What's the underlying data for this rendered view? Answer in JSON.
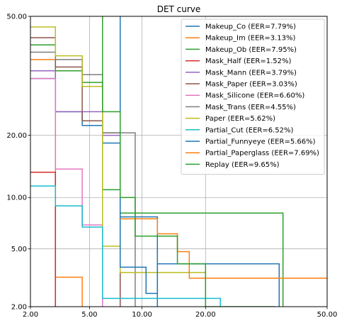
{
  "chart_data": {
    "type": "line",
    "title": "DET curve",
    "xlabel": "",
    "ylabel": "",
    "xscale": "probit",
    "yscale": "probit",
    "xlim": [
      2.0,
      50.0
    ],
    "ylim": [
      2.0,
      50.0
    ],
    "xticks": [
      2.0,
      5.0,
      10.0,
      20.0,
      50.0
    ],
    "xtick_labels": [
      "2.00",
      "5.00",
      "10.00",
      "20.00",
      "50.00"
    ],
    "yticks": [
      2.0,
      5.0,
      10.0,
      20.0,
      50.0
    ],
    "ytick_labels": [
      "2.00",
      "5.00",
      "10.00",
      "20.00",
      "50.00"
    ],
    "grid": true,
    "legend_position": "top-right",
    "series": [
      {
        "name": "Makeup_Co (EER=7.79%)",
        "color": "#1f77b4",
        "points": [
          [
            2.0,
            33.0
          ],
          [
            3.0,
            33.0
          ],
          [
            3.0,
            25.0
          ],
          [
            4.5,
            25.0
          ],
          [
            4.5,
            22.0
          ],
          [
            6.0,
            22.0
          ],
          [
            6.0,
            18.5
          ],
          [
            7.6,
            18.5
          ],
          [
            7.6,
            7.8
          ],
          [
            12.0,
            7.8
          ],
          [
            12.0,
            2.0
          ]
        ]
      },
      {
        "name": "Makeup_Im (EER=3.13%)",
        "color": "#ff7f0e",
        "points": [
          [
            2.0,
            38.0
          ],
          [
            3.0,
            38.0
          ],
          [
            3.0,
            3.25
          ],
          [
            4.5,
            3.25
          ],
          [
            4.5,
            2.0
          ]
        ]
      },
      {
        "name": "Makeup_Ob (EER=7.95%)",
        "color": "#2ca02c",
        "points": [
          [
            2.0,
            42.0
          ],
          [
            3.0,
            42.0
          ],
          [
            3.0,
            35.0
          ],
          [
            4.5,
            35.0
          ],
          [
            4.5,
            32.0
          ],
          [
            6.0,
            32.0
          ],
          [
            6.0,
            11.0
          ],
          [
            7.6,
            11.0
          ],
          [
            7.6,
            8.2
          ],
          [
            38.0,
            8.2
          ],
          [
            38.0,
            2.0
          ]
        ]
      },
      {
        "name": "Mask_Half (EER=1.52%)",
        "color": "#d62728",
        "points": [
          [
            2.0,
            13.5
          ],
          [
            3.0,
            13.5
          ],
          [
            3.0,
            2.0
          ]
        ]
      },
      {
        "name": "Mask_Mann (EER=3.79%)",
        "color": "#9467bd",
        "points": [
          [
            2.0,
            35.0
          ],
          [
            3.0,
            35.0
          ],
          [
            3.0,
            25.0
          ],
          [
            6.0,
            25.0
          ],
          [
            6.0,
            20.0
          ],
          [
            7.6,
            20.0
          ],
          [
            7.6,
            2.0
          ]
        ]
      },
      {
        "name": "Mask_Paper (EER=3.03%)",
        "color": "#8c564b",
        "points": [
          [
            2.0,
            44.0
          ],
          [
            3.0,
            44.0
          ],
          [
            3.0,
            36.0
          ],
          [
            4.5,
            36.0
          ],
          [
            4.5,
            23.0
          ],
          [
            6.0,
            23.0
          ],
          [
            6.0,
            20.5
          ],
          [
            7.6,
            20.5
          ],
          [
            7.6,
            2.0
          ]
        ]
      },
      {
        "name": "Mask_Silicone (EER=6.60%)",
        "color": "#e377c2",
        "points": [
          [
            2.0,
            33.0
          ],
          [
            3.0,
            33.0
          ],
          [
            3.0,
            14.0
          ],
          [
            4.5,
            14.0
          ],
          [
            4.5,
            7.0
          ],
          [
            6.0,
            7.0
          ],
          [
            6.0,
            2.0
          ]
        ]
      },
      {
        "name": "Mask_Trans (EER=4.55%)",
        "color": "#7f7f7f",
        "points": [
          [
            2.0,
            40.0
          ],
          [
            3.0,
            40.0
          ],
          [
            3.0,
            38.0
          ],
          [
            4.5,
            38.0
          ],
          [
            4.5,
            34.0
          ],
          [
            6.0,
            34.0
          ],
          [
            6.0,
            20.5
          ],
          [
            9.2,
            20.5
          ],
          [
            9.2,
            2.0
          ]
        ]
      },
      {
        "name": "Paper (EER=5.62%)",
        "color": "#bcbd22",
        "points": [
          [
            2.0,
            47.0
          ],
          [
            3.0,
            47.0
          ],
          [
            3.0,
            39.0
          ],
          [
            4.5,
            39.0
          ],
          [
            4.5,
            31.0
          ],
          [
            6.0,
            31.0
          ],
          [
            6.0,
            5.2
          ],
          [
            7.6,
            5.2
          ],
          [
            7.6,
            3.5
          ],
          [
            20.0,
            3.5
          ],
          [
            20.0,
            2.0
          ]
        ]
      },
      {
        "name": "Partial_Cut (EER=6.52%)",
        "color": "#17becf",
        "points": [
          [
            2.0,
            11.5
          ],
          [
            3.0,
            11.5
          ],
          [
            3.0,
            9.0
          ],
          [
            4.5,
            9.0
          ],
          [
            4.5,
            6.8
          ],
          [
            6.0,
            6.8
          ],
          [
            6.0,
            2.3
          ],
          [
            23.0,
            2.3
          ],
          [
            23.0,
            2.0
          ]
        ]
      },
      {
        "name": "Partial_Funnyeye (EER=5.66%)",
        "color": "#1f77b4",
        "points": [
          [
            7.6,
            50.0
          ],
          [
            7.6,
            3.8
          ],
          [
            10.5,
            3.8
          ],
          [
            10.5,
            2.5
          ],
          [
            12.0,
            2.5
          ],
          [
            12.0,
            4.0
          ],
          [
            37.0,
            4.0
          ],
          [
            37.0,
            2.0
          ]
        ]
      },
      {
        "name": "Partial_Paperglass (EER=7.69%)",
        "color": "#ff7f0e",
        "points": [
          [
            7.6,
            7.6
          ],
          [
            12.0,
            7.6
          ],
          [
            12.0,
            6.2
          ],
          [
            15.0,
            6.2
          ],
          [
            15.0,
            4.8
          ],
          [
            17.0,
            4.8
          ],
          [
            17.0,
            3.2
          ],
          [
            50.0,
            3.2
          ]
        ]
      },
      {
        "name": "Replay (EER=9.65%)",
        "color": "#2ca02c",
        "points": [
          [
            6.0,
            50.0
          ],
          [
            6.0,
            25.0
          ],
          [
            7.6,
            25.0
          ],
          [
            7.6,
            10.0
          ],
          [
            9.2,
            10.0
          ],
          [
            9.2,
            6.0
          ],
          [
            15.0,
            6.0
          ],
          [
            15.0,
            4.0
          ],
          [
            20.0,
            4.0
          ],
          [
            20.0,
            2.0
          ],
          [
            36.0,
            2.0
          ]
        ]
      }
    ]
  }
}
